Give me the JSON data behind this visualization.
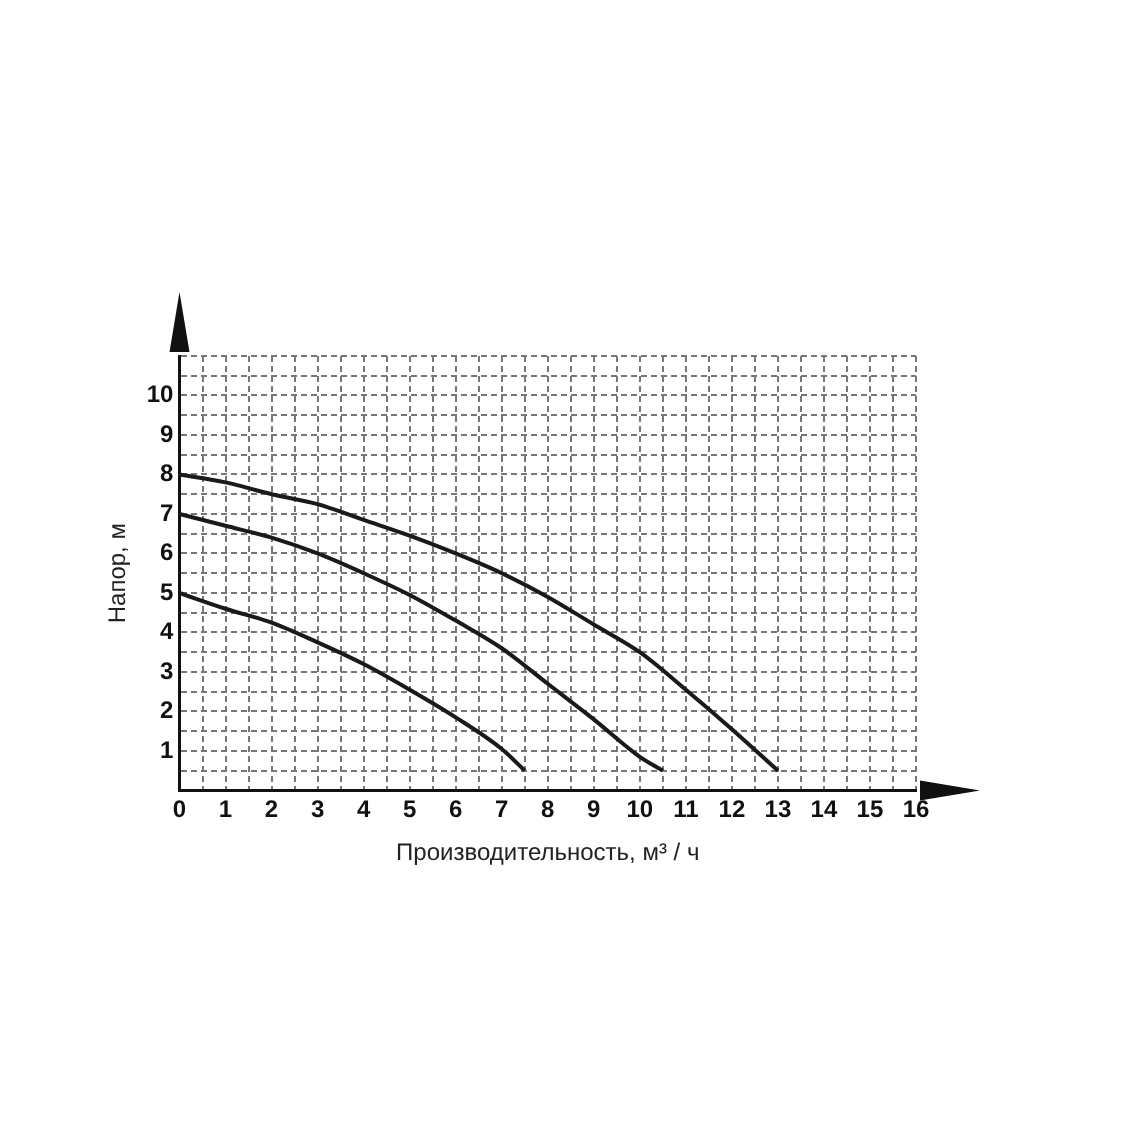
{
  "chart_data": {
    "type": "line",
    "xlabel": "Производительность, м³ / ч",
    "ylabel": "Напор, м",
    "xlim": [
      0,
      16
    ],
    "ylim": [
      0,
      11
    ],
    "xticks": [
      0,
      {
        "value": 0.5,
        "label": null
      },
      1,
      {
        "value": 1.5,
        "label": null
      },
      2,
      {
        "value": 2.5,
        "label": null
      },
      3,
      {
        "value": 3.5,
        "label": null
      },
      4,
      {
        "value": 4.5,
        "label": null
      },
      5,
      {
        "value": 5.5,
        "label": null
      },
      6,
      {
        "value": 6.5,
        "label": null
      },
      7,
      {
        "value": 7.5,
        "label": null
      },
      8,
      {
        "value": 8.5,
        "label": null
      },
      9,
      {
        "value": 9.5,
        "label": null
      },
      10,
      {
        "value": 10.5,
        "label": null
      },
      11,
      {
        "value": 11.5,
        "label": null
      },
      12,
      {
        "value": 12.5,
        "label": null
      },
      13,
      {
        "value": 13.5,
        "label": null
      },
      14,
      {
        "value": 14.5,
        "label": null
      },
      15,
      {
        "value": 15.5,
        "label": null
      },
      16
    ],
    "yticks": [
      {
        "value": 0,
        "label": null
      },
      {
        "value": 0.5,
        "label": null
      },
      1,
      {
        "value": 1.5,
        "label": null
      },
      2,
      {
        "value": 2.5,
        "label": null
      },
      3,
      {
        "value": 3.5,
        "label": null
      },
      4,
      {
        "value": 4.5,
        "label": null
      },
      5,
      {
        "value": 5.5,
        "label": null
      },
      6,
      {
        "value": 6.5,
        "label": null
      },
      7,
      {
        "value": 7.5,
        "label": null
      },
      8,
      {
        "value": 8.5,
        "label": null
      },
      9,
      {
        "value": 9.5,
        "label": null
      },
      10,
      {
        "value": 10.5,
        "label": null
      },
      {
        "value": 11,
        "label": null
      }
    ],
    "grid": true,
    "line_style": "solid",
    "marker": "none",
    "legend": false,
    "series": [
      {
        "color": "#1a1a1a",
        "x": [
          0,
          1,
          2,
          3,
          4,
          5,
          6,
          7,
          7.5
        ],
        "values": [
          5,
          4.6,
          4.25,
          3.75,
          3.2,
          2.55,
          1.85,
          1.05,
          0.5
        ]
      },
      {
        "color": "#1a1a1a",
        "x": [
          0,
          1,
          2,
          3,
          4,
          5,
          6,
          7,
          8,
          9,
          10,
          10.5
        ],
        "values": [
          7,
          6.7,
          6.4,
          6,
          5.5,
          4.95,
          4.3,
          3.6,
          2.7,
          1.8,
          0.85,
          0.5
        ]
      },
      {
        "color": "#1a1a1a",
        "x": [
          0,
          1,
          2,
          3,
          4,
          5,
          6,
          7,
          8,
          9,
          10,
          11,
          12,
          13
        ],
        "values": [
          8,
          7.8,
          7.5,
          7.25,
          6.85,
          6.45,
          6,
          5.5,
          4.9,
          4.2,
          3.5,
          2.55,
          1.55,
          0.5
        ]
      }
    ]
  }
}
